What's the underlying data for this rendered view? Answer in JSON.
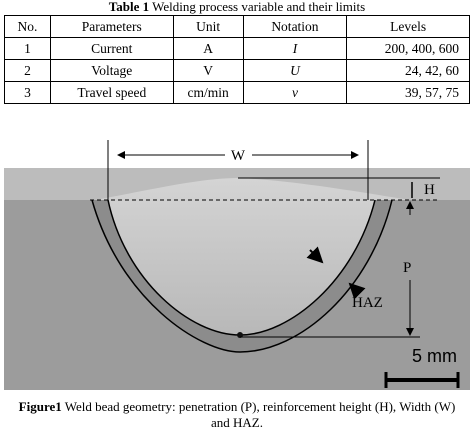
{
  "table": {
    "caption": {
      "label": "Table 1",
      "text": "Welding process variable and their limits"
    },
    "header": [
      "No.",
      "Parameters",
      "Unit",
      "Notation",
      "Levels"
    ],
    "rows": [
      [
        "1",
        "Current",
        "A",
        "I",
        "200, 400, 600"
      ],
      [
        "2",
        "Voltage",
        "V",
        "U",
        "24, 42, 60"
      ],
      [
        "3",
        "Travel speed",
        "cm/min",
        "v",
        "39, 57, 75"
      ]
    ]
  },
  "figure": {
    "labels": {
      "width": "W",
      "height": "H",
      "penetration": "P",
      "haz": "HAZ",
      "scale": "5 mm"
    },
    "caption": {
      "label": "Figure1",
      "text": "Weld bead geometry: penetration (P), reinforcement height (H), Width (W) and HAZ."
    }
  }
}
